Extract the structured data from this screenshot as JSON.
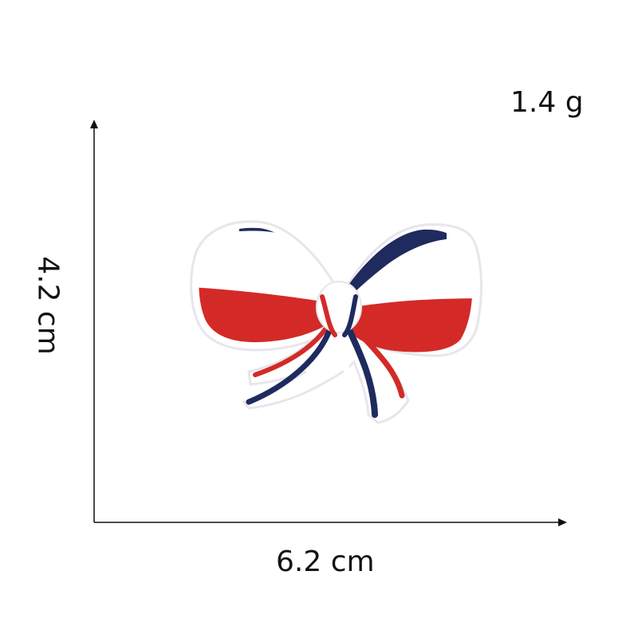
{
  "dimensions": {
    "weight": "1.4 g",
    "width": "6.2 cm",
    "height": "4.2 cm"
  },
  "product": {
    "icon": "bow-patch-icon",
    "colors": {
      "navy": "#1f2a5e",
      "white": "#ffffff",
      "red": "#d32a28",
      "outline": "#e9e9ee"
    }
  }
}
